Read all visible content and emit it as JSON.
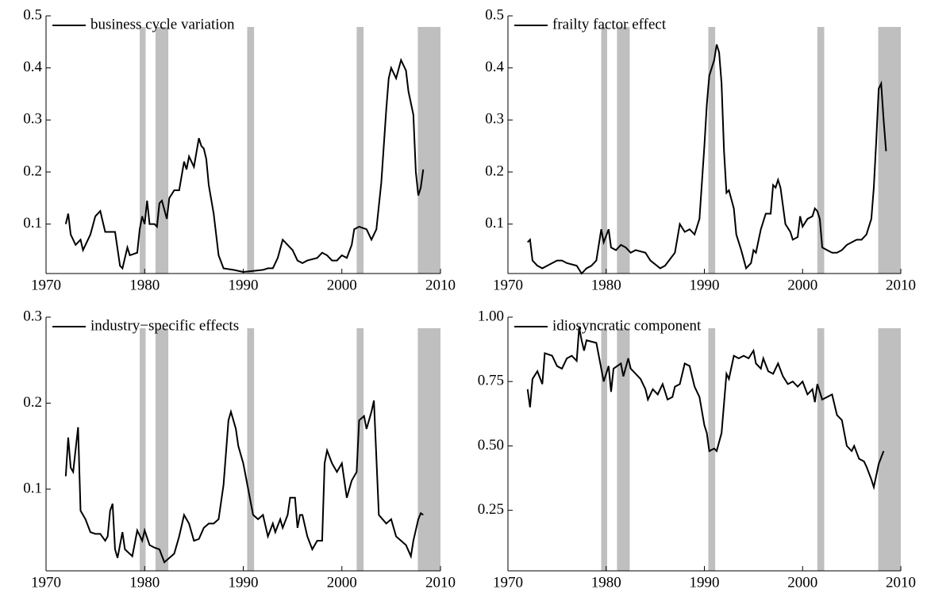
{
  "chart_data": [
    {
      "type": "line",
      "xlim": [
        1970,
        2010
      ],
      "xticks": [
        1970,
        1980,
        1990,
        2000,
        2010
      ],
      "ylim": [
        0.005,
        0.5
      ],
      "yticks": [
        0.1,
        0.2,
        0.3,
        0.4,
        0.5
      ],
      "shaded_regions": [
        [
          1979.5,
          1980.1
        ],
        [
          1981.1,
          1982.4
        ],
        [
          1990.4,
          1991.1
        ],
        [
          2001.5,
          2002.2
        ],
        [
          2007.7,
          2010
        ]
      ],
      "shade_color": "#bfbfbf",
      "x": [
        1972,
        1972.25,
        1972.5,
        1973,
        1973.5,
        1973.75,
        1974.5,
        1975,
        1975.5,
        1976,
        1977,
        1977.5,
        1977.75,
        1978.25,
        1978.5,
        1979.25,
        1979.5,
        1979.75,
        1980,
        1980.25,
        1980.5,
        1981,
        1981.25,
        1981.5,
        1981.75,
        1982.25,
        1982.5,
        1983,
        1983.5,
        1984,
        1984.25,
        1984.5,
        1985,
        1985.5,
        1985.75,
        1986,
        1986.25,
        1986.5,
        1987,
        1987.5,
        1988,
        1989,
        1990,
        1991,
        1992,
        1992.5,
        1993,
        1993.5,
        1994,
        1994.5,
        1995,
        1995.5,
        1996,
        1996.5,
        1997.5,
        1998,
        1998.5,
        1999,
        1999.5,
        2000,
        2000.5,
        2001,
        2001.25,
        2001.75,
        2002.5,
        2003,
        2003.5,
        2004,
        2004.5,
        2004.75,
        2005,
        2005.5,
        2006,
        2006.25,
        2006.5,
        2006.75,
        2007.25,
        2007.5,
        2007.75,
        2008,
        2008.25
      ],
      "series": [
        {
          "name": "business cycle variation",
          "color": "#000000",
          "values": [
            0.1,
            0.12,
            0.08,
            0.06,
            0.07,
            0.05,
            0.08,
            0.115,
            0.125,
            0.085,
            0.085,
            0.02,
            0.015,
            0.055,
            0.04,
            0.045,
            0.09,
            0.115,
            0.1,
            0.145,
            0.1,
            0.1,
            0.095,
            0.14,
            0.145,
            0.11,
            0.15,
            0.165,
            0.165,
            0.22,
            0.205,
            0.23,
            0.21,
            0.265,
            0.25,
            0.245,
            0.225,
            0.175,
            0.12,
            0.04,
            0.015,
            0.012,
            0.008,
            0.01,
            0.012,
            0.015,
            0.015,
            0.035,
            0.07,
            0.06,
            0.05,
            0.03,
            0.025,
            0.03,
            0.035,
            0.045,
            0.04,
            0.03,
            0.03,
            0.04,
            0.035,
            0.06,
            0.09,
            0.095,
            0.09,
            0.07,
            0.09,
            0.18,
            0.32,
            0.38,
            0.4,
            0.38,
            0.415,
            0.405,
            0.395,
            0.355,
            0.31,
            0.2,
            0.155,
            0.17,
            0.205
          ]
        }
      ]
    },
    {
      "type": "line",
      "xlim": [
        1970,
        2010
      ],
      "xticks": [
        1970,
        1980,
        1990,
        2000,
        2010
      ],
      "ylim": [
        0.005,
        0.5
      ],
      "yticks": [
        0.1,
        0.2,
        0.3,
        0.4,
        0.5
      ],
      "shaded_regions": [
        [
          1979.5,
          1980.1
        ],
        [
          1981.1,
          1982.4
        ],
        [
          1990.4,
          1991.1
        ],
        [
          2001.5,
          2002.2
        ],
        [
          2007.7,
          2010
        ]
      ],
      "shade_color": "#bfbfbf",
      "x": [
        1972,
        1972.25,
        1972.5,
        1973,
        1973.5,
        1974,
        1975,
        1975.5,
        1976,
        1977,
        1977.5,
        1978,
        1978.5,
        1979,
        1979.5,
        1979.75,
        1980.25,
        1980.5,
        1981,
        1981.5,
        1982,
        1982.5,
        1983,
        1984,
        1984.5,
        1985.5,
        1986,
        1987,
        1987.5,
        1988,
        1988.5,
        1989,
        1989.5,
        1990,
        1990.25,
        1990.5,
        1991,
        1991.25,
        1991.5,
        1991.75,
        1992,
        1992.25,
        1992.5,
        1993,
        1993.25,
        1993.75,
        1994.25,
        1994.75,
        1995,
        1995.25,
        1995.75,
        1996.25,
        1996.75,
        1997,
        1997.25,
        1997.5,
        1997.75,
        1998.25,
        1998.75,
        1999,
        1999.5,
        1999.75,
        2000,
        2000.5,
        2001,
        2001.25,
        2001.5,
        2001.75,
        2002,
        2002.5,
        2003,
        2003.5,
        2004,
        2004.5,
        2005,
        2005.5,
        2006,
        2006.5,
        2007,
        2007.25,
        2007.5,
        2007.75,
        2008,
        2008.25,
        2008.5
      ],
      "series": [
        {
          "name": "frailty factor effect",
          "color": "#000000",
          "values": [
            0.065,
            0.07,
            0.03,
            0.02,
            0.015,
            0.02,
            0.03,
            0.03,
            0.025,
            0.02,
            0.005,
            0.015,
            0.02,
            0.03,
            0.09,
            0.065,
            0.09,
            0.055,
            0.05,
            0.06,
            0.055,
            0.045,
            0.05,
            0.045,
            0.03,
            0.015,
            0.02,
            0.045,
            0.1,
            0.085,
            0.09,
            0.08,
            0.11,
            0.25,
            0.33,
            0.385,
            0.415,
            0.445,
            0.43,
            0.37,
            0.24,
            0.16,
            0.165,
            0.13,
            0.08,
            0.05,
            0.015,
            0.025,
            0.05,
            0.045,
            0.09,
            0.12,
            0.12,
            0.175,
            0.17,
            0.185,
            0.17,
            0.1,
            0.085,
            0.07,
            0.075,
            0.115,
            0.095,
            0.11,
            0.115,
            0.13,
            0.125,
            0.11,
            0.055,
            0.05,
            0.045,
            0.045,
            0.05,
            0.06,
            0.065,
            0.07,
            0.07,
            0.08,
            0.11,
            0.17,
            0.26,
            0.36,
            0.37,
            0.3,
            0.24
          ]
        }
      ]
    },
    {
      "type": "line",
      "xlim": [
        1970,
        2010
      ],
      "xticks": [
        1970,
        1980,
        1990,
        2000,
        2010
      ],
      "ylim": [
        0.005,
        0.3
      ],
      "yticks": [
        0.1,
        0.2,
        0.3
      ],
      "shaded_regions": [
        [
          1979.5,
          1980.1
        ],
        [
          1981.1,
          1982.4
        ],
        [
          1990.4,
          1991.1
        ],
        [
          2001.5,
          2002.2
        ],
        [
          2007.7,
          2010
        ]
      ],
      "shade_color": "#bfbfbf",
      "x": [
        1972,
        1972.25,
        1972.5,
        1972.75,
        1973.25,
        1973.5,
        1974,
        1974.5,
        1975,
        1975.5,
        1976,
        1976.25,
        1976.5,
        1976.75,
        1977,
        1977.25,
        1977.75,
        1978,
        1978.75,
        1979.25,
        1979.75,
        1980,
        1980.5,
        1981,
        1981.5,
        1982,
        1982.5,
        1983,
        1983.5,
        1984,
        1984.5,
        1985,
        1985.5,
        1986,
        1986.5,
        1987,
        1987.5,
        1988,
        1988.5,
        1988.75,
        1989.25,
        1989.5,
        1990,
        1990.5,
        1991,
        1991.5,
        1992,
        1992.5,
        1993,
        1993.25,
        1993.75,
        1994,
        1994.5,
        1994.75,
        1995.25,
        1995.5,
        1995.75,
        1996,
        1996.5,
        1997,
        1997.5,
        1998,
        1998.25,
        1998.5,
        1999,
        1999.5,
        2000,
        2000.5,
        2001,
        2001.5,
        2001.75,
        2002.25,
        2002.5,
        2003,
        2003.25,
        2003.75,
        2004.5,
        2005,
        2005.5,
        2006,
        2006.5,
        2007,
        2007.25,
        2007.75,
        2008,
        2008.25
      ],
      "series": [
        {
          "name": "industry−specific effects",
          "color": "#000000",
          "values": [
            0.115,
            0.16,
            0.125,
            0.12,
            0.172,
            0.075,
            0.065,
            0.05,
            0.048,
            0.048,
            0.04,
            0.045,
            0.075,
            0.083,
            0.03,
            0.02,
            0.05,
            0.03,
            0.022,
            0.052,
            0.04,
            0.052,
            0.035,
            0.032,
            0.03,
            0.015,
            0.02,
            0.025,
            0.045,
            0.07,
            0.06,
            0.04,
            0.042,
            0.055,
            0.06,
            0.06,
            0.065,
            0.105,
            0.18,
            0.19,
            0.17,
            0.15,
            0.13,
            0.1,
            0.07,
            0.065,
            0.07,
            0.045,
            0.06,
            0.05,
            0.065,
            0.055,
            0.07,
            0.09,
            0.09,
            0.055,
            0.07,
            0.07,
            0.045,
            0.03,
            0.04,
            0.04,
            0.13,
            0.145,
            0.13,
            0.12,
            0.13,
            0.09,
            0.11,
            0.12,
            0.18,
            0.185,
            0.17,
            0.19,
            0.203,
            0.07,
            0.06,
            0.065,
            0.045,
            0.04,
            0.035,
            0.022,
            0.04,
            0.065,
            0.072,
            0.07
          ]
        }
      ]
    },
    {
      "type": "line",
      "xlim": [
        1970,
        2010
      ],
      "xticks": [
        1970,
        1980,
        1990,
        2000,
        2010
      ],
      "ylim": [
        0.015,
        1.0
      ],
      "yticks": [
        0.25,
        {
          "value": 0.5,
          "label": "0.50"
        },
        0.75,
        {
          "value": 1.0,
          "label": "1.00"
        }
      ],
      "shaded_regions": [
        [
          1979.5,
          1980.1
        ],
        [
          1981.1,
          1982.4
        ],
        [
          1990.4,
          1991.1
        ],
        [
          2001.5,
          2002.2
        ],
        [
          2007.7,
          2010
        ]
      ],
      "shade_color": "#bfbfbf",
      "x": [
        1972,
        1972.25,
        1972.5,
        1973,
        1973.5,
        1973.75,
        1974.5,
        1975,
        1975.5,
        1976,
        1976.5,
        1977,
        1977.25,
        1977.5,
        1977.75,
        1978,
        1979,
        1979.5,
        1979.75,
        1980.25,
        1980.5,
        1980.75,
        1981.5,
        1981.75,
        1982.25,
        1982.5,
        1983,
        1983.5,
        1984,
        1984.25,
        1984.75,
        1985.25,
        1985.75,
        1986.25,
        1986.75,
        1987,
        1987.5,
        1988,
        1988.5,
        1989,
        1989.5,
        1990,
        1990.25,
        1990.5,
        1991,
        1991.25,
        1991.75,
        1992.25,
        1992.5,
        1993,
        1993.5,
        1994,
        1994.5,
        1995,
        1995.25,
        1995.75,
        1996,
        1996.5,
        1997,
        1997.5,
        1998,
        1998.5,
        1999,
        1999.5,
        2000,
        2000.5,
        2001,
        2001.25,
        2001.5,
        2002,
        2002.5,
        2003,
        2003.5,
        2004,
        2004.5,
        2005,
        2005.25,
        2005.75,
        2006.25,
        2006.5,
        2007,
        2007.25,
        2007.75,
        2008.25
      ],
      "series": [
        {
          "name": "idiosyncratic component",
          "color": "#000000",
          "values": [
            0.72,
            0.65,
            0.76,
            0.79,
            0.74,
            0.86,
            0.85,
            0.81,
            0.8,
            0.84,
            0.85,
            0.83,
            0.96,
            0.91,
            0.87,
            0.91,
            0.9,
            0.8,
            0.75,
            0.81,
            0.71,
            0.8,
            0.82,
            0.77,
            0.84,
            0.8,
            0.78,
            0.76,
            0.72,
            0.68,
            0.72,
            0.7,
            0.74,
            0.68,
            0.69,
            0.73,
            0.74,
            0.82,
            0.81,
            0.73,
            0.69,
            0.58,
            0.55,
            0.48,
            0.49,
            0.48,
            0.55,
            0.78,
            0.76,
            0.85,
            0.84,
            0.85,
            0.84,
            0.87,
            0.82,
            0.8,
            0.84,
            0.79,
            0.78,
            0.82,
            0.77,
            0.74,
            0.75,
            0.73,
            0.75,
            0.7,
            0.72,
            0.67,
            0.74,
            0.68,
            0.69,
            0.7,
            0.62,
            0.6,
            0.5,
            0.48,
            0.5,
            0.45,
            0.44,
            0.42,
            0.37,
            0.34,
            0.43,
            0.48
          ]
        }
      ]
    }
  ]
}
